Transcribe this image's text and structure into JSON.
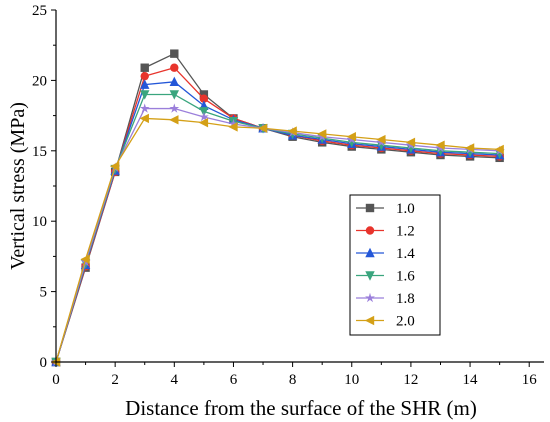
{
  "chart_data": {
    "type": "line",
    "xlabel": "Distance from the surface of the SHR (m)",
    "ylabel": "Vertical stress (MPa)",
    "xlim": [
      0,
      16.5
    ],
    "ylim": [
      0,
      25
    ],
    "xticks": [
      0,
      2,
      4,
      6,
      8,
      10,
      12,
      14,
      16
    ],
    "yticks": [
      0,
      5,
      10,
      15,
      20,
      25
    ],
    "grid": false,
    "legend_position": "right-middle",
    "x": [
      0,
      1,
      2,
      3,
      4,
      5,
      6,
      7,
      8,
      9,
      10,
      11,
      12,
      13,
      14,
      15
    ],
    "series": [
      {
        "name": "1.0",
        "color": "#555555",
        "marker": "square",
        "values": [
          0,
          6.7,
          13.5,
          20.9,
          21.9,
          19.0,
          17.3,
          16.6,
          16.0,
          15.6,
          15.3,
          15.1,
          14.9,
          14.7,
          14.6,
          14.5
        ]
      },
      {
        "name": "1.2",
        "color": "#e8342c",
        "marker": "circle",
        "values": [
          0,
          6.8,
          13.5,
          20.3,
          20.9,
          18.7,
          17.3,
          16.6,
          16.1,
          15.7,
          15.4,
          15.2,
          15.0,
          14.8,
          14.7,
          14.6
        ]
      },
      {
        "name": "1.4",
        "color": "#2457d8",
        "marker": "triangle-up",
        "values": [
          0,
          6.9,
          13.6,
          19.7,
          19.9,
          18.2,
          17.2,
          16.6,
          16.1,
          15.8,
          15.5,
          15.3,
          15.1,
          14.9,
          14.8,
          14.7
        ]
      },
      {
        "name": "1.6",
        "color": "#3aa57e",
        "marker": "triangle-down",
        "values": [
          0,
          7.0,
          13.7,
          19.0,
          19.0,
          17.8,
          17.1,
          16.6,
          16.2,
          15.9,
          15.6,
          15.4,
          15.2,
          15.0,
          14.9,
          14.8
        ]
      },
      {
        "name": "1.8",
        "color": "#9b7fdb",
        "marker": "star",
        "values": [
          0,
          7.1,
          13.8,
          18.0,
          18.0,
          17.4,
          16.9,
          16.6,
          16.3,
          16.0,
          15.8,
          15.6,
          15.4,
          15.2,
          15.1,
          15.0
        ]
      },
      {
        "name": "2.0",
        "color": "#d4a017",
        "marker": "triangle-left",
        "values": [
          0,
          7.3,
          13.9,
          17.3,
          17.2,
          17.0,
          16.7,
          16.6,
          16.4,
          16.2,
          16.0,
          15.8,
          15.6,
          15.4,
          15.2,
          15.1
        ]
      }
    ]
  }
}
